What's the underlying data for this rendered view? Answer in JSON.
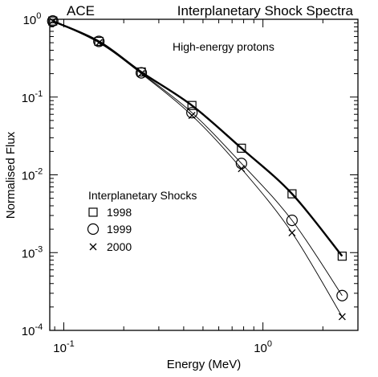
{
  "chart_data": {
    "type": "scatter",
    "title": "Interplanetary Shock Spectra",
    "top_left_label": "ACE",
    "annotation": "High-energy protons",
    "xlabel": "Energy (MeV)",
    "ylabel": "Normalised Flux",
    "xscale": "log",
    "yscale": "log",
    "xlim": [
      0.085,
      3.0
    ],
    "ylim": [
      0.0001,
      1
    ],
    "x_ticks": [
      {
        "value": 0.1,
        "base": "10",
        "exp": "-1"
      },
      {
        "value": 1,
        "base": "10",
        "exp": "0"
      }
    ],
    "y_ticks": [
      {
        "value": 1,
        "base": "10",
        "exp": "0"
      },
      {
        "value": 0.1,
        "base": "10",
        "exp": "-1"
      },
      {
        "value": 0.01,
        "base": "10",
        "exp": "-2"
      },
      {
        "value": 0.001,
        "base": "10",
        "exp": "-3"
      },
      {
        "value": 0.0001,
        "base": "10",
        "exp": "-4"
      }
    ],
    "grid": false,
    "legend": {
      "title": "Interplanetary Shocks",
      "position": "bottom-left"
    },
    "series": [
      {
        "name": "1998",
        "marker": "square",
        "fit_line": "thick",
        "x": [
          0.088,
          0.15,
          0.245,
          0.44,
          0.78,
          1.4,
          2.5
        ],
        "y": [
          0.95,
          0.52,
          0.21,
          0.078,
          0.022,
          0.0057,
          0.0009
        ]
      },
      {
        "name": "1999",
        "marker": "circle",
        "fit_line": "thin",
        "x": [
          0.088,
          0.15,
          0.245,
          0.44,
          0.78,
          1.4,
          2.5
        ],
        "y": [
          0.95,
          0.52,
          0.205,
          0.063,
          0.014,
          0.0026,
          0.00028
        ]
      },
      {
        "name": "2000",
        "marker": "x",
        "fit_line": "thin",
        "x": [
          0.088,
          0.15,
          0.245,
          0.44,
          0.78,
          1.4,
          2.5
        ],
        "y": [
          0.95,
          0.5,
          0.2,
          0.058,
          0.012,
          0.0018,
          0.00015
        ]
      }
    ]
  }
}
